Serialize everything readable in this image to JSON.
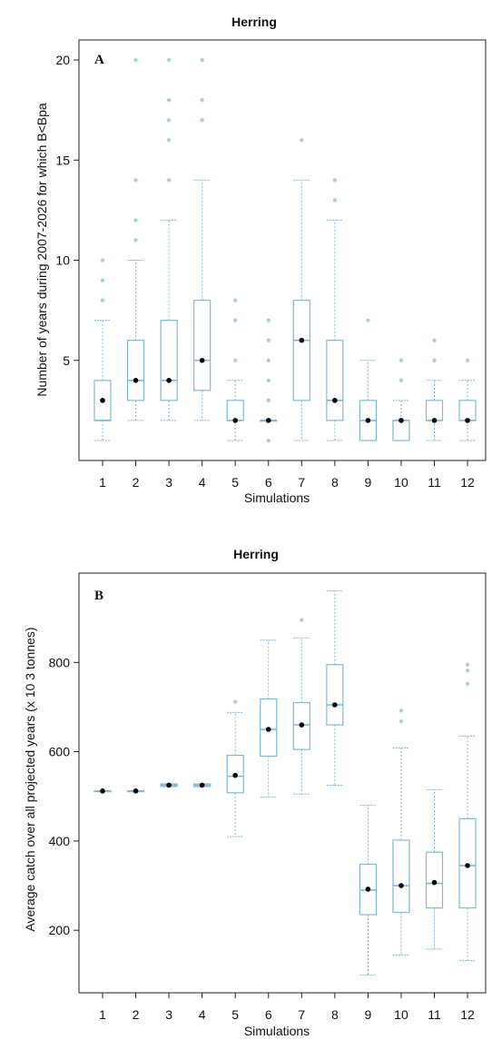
{
  "chart_data": [
    {
      "type": "box",
      "panel": "A",
      "title": "Herring",
      "xlabel": "Simulations",
      "ylabel": "Number of years during 2007-2026 for which B<Bpa",
      "categories": [
        "1",
        "2",
        "3",
        "4",
        "5",
        "6",
        "7",
        "8",
        "9",
        "10",
        "11",
        "12"
      ],
      "ylim": [
        0,
        21
      ],
      "yticks": [
        5,
        10,
        15,
        20
      ],
      "grid": false,
      "box_color": "#7fb9d8",
      "mean_color": "#000000",
      "boxes": [
        {
          "whisker_low": 1,
          "q1": 2,
          "median": 2,
          "q3": 4,
          "whisker_high": 7,
          "mean": 3,
          "outliers": [
            8,
            9,
            10
          ]
        },
        {
          "whisker_low": 2,
          "q1": 3,
          "median": 4,
          "q3": 6,
          "whisker_high": 10,
          "mean": 4,
          "outliers": [
            11,
            12,
            14,
            20
          ]
        },
        {
          "whisker_low": 2,
          "q1": 3,
          "median": 4,
          "q3": 7,
          "whisker_high": 12,
          "mean": 4,
          "outliers": [
            14,
            16,
            17,
            18,
            20
          ]
        },
        {
          "whisker_low": 2,
          "q1": 3.5,
          "median": 5,
          "q3": 8,
          "whisker_high": 14,
          "mean": 5,
          "outliers": [
            17,
            18,
            20
          ]
        },
        {
          "whisker_low": 1,
          "q1": 2,
          "median": 2,
          "q3": 3,
          "whisker_high": 4,
          "mean": 2,
          "outliers": [
            5,
            7,
            8
          ]
        },
        {
          "whisker_low": 2,
          "q1": 2,
          "median": 2,
          "q3": 2,
          "whisker_high": 2,
          "mean": 2,
          "outliers": [
            1,
            3,
            4,
            5,
            6,
            7
          ]
        },
        {
          "whisker_low": 1,
          "q1": 3,
          "median": 6,
          "q3": 8,
          "whisker_high": 14,
          "mean": 6,
          "outliers": [
            16
          ]
        },
        {
          "whisker_low": 1,
          "q1": 2,
          "median": 3,
          "q3": 6,
          "whisker_high": 12,
          "mean": 3,
          "outliers": [
            13,
            14
          ]
        },
        {
          "whisker_low": 1,
          "q1": 1,
          "median": 2,
          "q3": 3,
          "whisker_high": 5,
          "mean": 2,
          "outliers": [
            7
          ]
        },
        {
          "whisker_low": 1,
          "q1": 1,
          "median": 2,
          "q3": 2,
          "whisker_high": 3,
          "mean": 2,
          "outliers": [
            4,
            5
          ]
        },
        {
          "whisker_low": 1,
          "q1": 2,
          "median": 2,
          "q3": 3,
          "whisker_high": 4,
          "mean": 2,
          "outliers": [
            5,
            6
          ]
        },
        {
          "whisker_low": 1,
          "q1": 2,
          "median": 2,
          "q3": 3,
          "whisker_high": 4,
          "mean": 2,
          "outliers": [
            5
          ]
        }
      ]
    },
    {
      "type": "box",
      "panel": "B",
      "title": "Herring",
      "xlabel": "Simulations",
      "ylabel": "Average catch over all projected years (x 10 3 tonnes)",
      "categories": [
        "1",
        "2",
        "3",
        "4",
        "5",
        "6",
        "7",
        "8",
        "9",
        "10",
        "11",
        "12"
      ],
      "ylim": [
        60,
        1000
      ],
      "yticks": [
        200,
        400,
        600,
        800
      ],
      "grid": false,
      "box_color": "#7fb9d8",
      "mean_color": "#000000",
      "boxes": [
        {
          "whisker_low": 512,
          "q1": 512,
          "median": 512,
          "q3": 512,
          "whisker_high": 512,
          "mean": 512,
          "outliers": []
        },
        {
          "whisker_low": 512,
          "q1": 512,
          "median": 512,
          "q3": 512,
          "whisker_high": 512,
          "mean": 512,
          "outliers": []
        },
        {
          "whisker_low": 522,
          "q1": 522,
          "median": 525,
          "q3": 528,
          "whisker_high": 528,
          "mean": 525,
          "outliers": []
        },
        {
          "whisker_low": 522,
          "q1": 522,
          "median": 525,
          "q3": 528,
          "whisker_high": 528,
          "mean": 525,
          "outliers": []
        },
        {
          "whisker_low": 410,
          "q1": 508,
          "median": 545,
          "q3": 592,
          "whisker_high": 688,
          "mean": 547,
          "outliers": [
            712
          ]
        },
        {
          "whisker_low": 498,
          "q1": 590,
          "median": 650,
          "q3": 718,
          "whisker_high": 850,
          "mean": 650,
          "outliers": []
        },
        {
          "whisker_low": 505,
          "q1": 605,
          "median": 660,
          "q3": 710,
          "whisker_high": 855,
          "mean": 660,
          "outliers": [
            895
          ]
        },
        {
          "whisker_low": 525,
          "q1": 660,
          "median": 705,
          "q3": 795,
          "whisker_high": 960,
          "mean": 705,
          "outliers": []
        },
        {
          "whisker_low": 100,
          "q1": 235,
          "median": 290,
          "q3": 348,
          "whisker_high": 480,
          "mean": 292,
          "outliers": []
        },
        {
          "whisker_low": 145,
          "q1": 240,
          "median": 300,
          "q3": 402,
          "whisker_high": 608,
          "mean": 300,
          "outliers": [
            668,
            692
          ]
        },
        {
          "whisker_low": 158,
          "q1": 250,
          "median": 305,
          "q3": 375,
          "whisker_high": 515,
          "mean": 307,
          "outliers": []
        },
        {
          "whisker_low": 132,
          "q1": 250,
          "median": 345,
          "q3": 450,
          "whisker_high": 635,
          "mean": 345,
          "outliers": [
            752,
            782,
            795
          ]
        }
      ]
    }
  ]
}
